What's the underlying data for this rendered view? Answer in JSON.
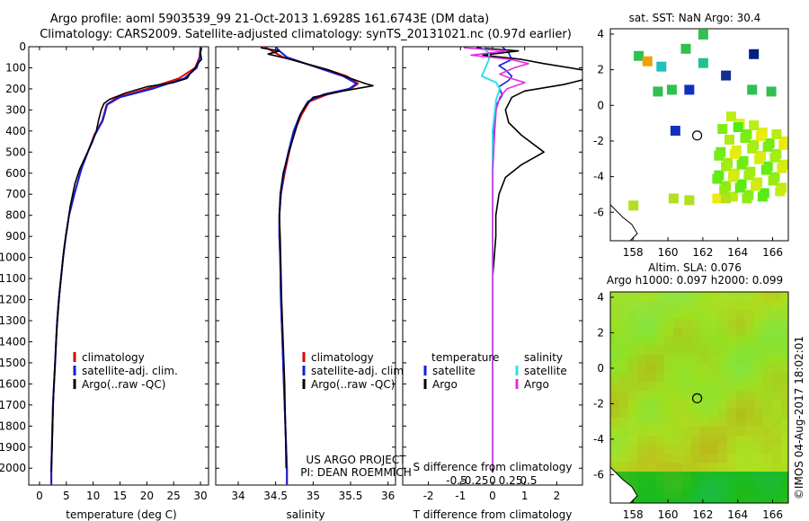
{
  "title": {
    "line1": "Argo profile: aoml 5903539_99 21-Oct-2013 1.6928S 161.6743E (DM data)",
    "line2": "Climatology: CARS2009. Satellite-adjusted climatology: synTS_20131021.nc (0.97d earlier)"
  },
  "side_label": "©IMOS 04-Aug-2017 18:02:01",
  "colors": {
    "climatology": "#e00000",
    "satellite": "#1020e0",
    "argo": "#000000",
    "sal_satellite": "#30e0e8",
    "sal_argo": "#e030e0"
  },
  "chart_data": [
    {
      "id": "temperature",
      "type": "line",
      "xlabel": "temperature (deg C)",
      "ylabel": "",
      "xlim": [
        -2,
        31.5
      ],
      "ylim": [
        2080,
        0
      ],
      "xticks": [
        "0",
        "5",
        "10",
        "15",
        "20",
        "25",
        "30"
      ],
      "yticks": [
        "0",
        "100",
        "200",
        "300",
        "400",
        "500",
        "600",
        "700",
        "800",
        "900",
        "1000",
        "1100",
        "1200",
        "1300",
        "1400",
        "1500",
        "1600",
        "1700",
        "1800",
        "1900",
        "2000"
      ],
      "legend": [
        "climatology",
        "satellite-adj. clim.",
        "Argo(..raw -QC)"
      ],
      "legend_position": "bottom-center",
      "series": [
        {
          "name": "climatology",
          "points": [
            [
              30.0,
              0
            ],
            [
              29.8,
              50
            ],
            [
              29.0,
              100
            ],
            [
              26.0,
              150
            ],
            [
              20.0,
              200
            ],
            [
              14.5,
              240
            ],
            [
              12.5,
              275
            ],
            [
              11.7,
              350
            ],
            [
              10.2,
              420
            ],
            [
              9.0,
              500
            ],
            [
              7.8,
              580
            ],
            [
              6.5,
              700
            ],
            [
              5.5,
              800
            ],
            [
              4.9,
              900
            ],
            [
              4.4,
              1000
            ],
            [
              4.0,
              1100
            ],
            [
              3.6,
              1200
            ],
            [
              3.3,
              1300
            ],
            [
              3.1,
              1400
            ],
            [
              2.9,
              1500
            ],
            [
              2.7,
              1600
            ],
            [
              2.5,
              1700
            ],
            [
              2.4,
              1800
            ],
            [
              2.3,
              1900
            ],
            [
              2.2,
              2000
            ],
            [
              2.2,
              2080
            ]
          ]
        },
        {
          "name": "satellite-adj. clim.",
          "points": [
            [
              30.1,
              0
            ],
            [
              29.9,
              50
            ],
            [
              29.3,
              100
            ],
            [
              27.0,
              150
            ],
            [
              21.0,
              200
            ],
            [
              15.0,
              240
            ],
            [
              12.6,
              275
            ],
            [
              11.8,
              350
            ],
            [
              10.3,
              420
            ],
            [
              9.0,
              500
            ],
            [
              7.8,
              580
            ],
            [
              6.5,
              700
            ],
            [
              5.5,
              800
            ],
            [
              4.9,
              900
            ],
            [
              4.4,
              1000
            ],
            [
              4.0,
              1100
            ],
            [
              3.6,
              1200
            ],
            [
              3.3,
              1300
            ],
            [
              3.1,
              1400
            ],
            [
              2.9,
              1500
            ],
            [
              2.7,
              1600
            ],
            [
              2.5,
              1700
            ],
            [
              2.4,
              1800
            ],
            [
              2.3,
              1900
            ],
            [
              2.2,
              2000
            ],
            [
              2.2,
              2080
            ]
          ]
        },
        {
          "name": "Argo(..raw -QC)",
          "points": [
            [
              30.2,
              5
            ],
            [
              30.0,
              30
            ],
            [
              30.2,
              60
            ],
            [
              29.5,
              80
            ],
            [
              29.0,
              100
            ],
            [
              28.0,
              130
            ],
            [
              27.5,
              150
            ],
            [
              25.0,
              170
            ],
            [
              20.0,
              190
            ],
            [
              16.0,
              220
            ],
            [
              13.0,
              250
            ],
            [
              12.0,
              270
            ],
            [
              11.5,
              300
            ],
            [
              11.0,
              350
            ],
            [
              10.6,
              400
            ],
            [
              9.9,
              450
            ],
            [
              8.6,
              520
            ],
            [
              7.5,
              580
            ],
            [
              6.6,
              650
            ],
            [
              5.7,
              760
            ],
            [
              5.2,
              850
            ],
            [
              4.6,
              950
            ],
            [
              4.2,
              1050
            ],
            [
              3.8,
              1150
            ],
            [
              3.5,
              1250
            ],
            [
              3.2,
              1350
            ],
            [
              3.0,
              1450
            ],
            [
              2.8,
              1550
            ],
            [
              2.6,
              1650
            ],
            [
              2.5,
              1750
            ],
            [
              2.4,
              1850
            ],
            [
              2.3,
              1950
            ],
            [
              2.2,
              2020
            ]
          ]
        }
      ]
    },
    {
      "id": "salinity",
      "type": "line",
      "xlabel": "salinity",
      "xlim": [
        33.7,
        36.1
      ],
      "ylim": [
        2080,
        0
      ],
      "xticks": [
        "34",
        "34.5",
        "35",
        "35.5",
        "36"
      ],
      "legend": [
        "climatology",
        "satellite-adj. clim.",
        "Argo(..raw -QC)"
      ],
      "legend_position": "bottom-center",
      "annotation": [
        "US ARGO PROJECT",
        "PI: DEAN ROEMMICH"
      ],
      "series": [
        {
          "name": "climatology",
          "points": [
            [
              34.35,
              0
            ],
            [
              34.45,
              20
            ],
            [
              34.6,
              50
            ],
            [
              34.9,
              80
            ],
            [
              35.2,
              110
            ],
            [
              35.45,
              140
            ],
            [
              35.6,
              175
            ],
            [
              35.5,
              200
            ],
            [
              35.2,
              225
            ],
            [
              34.95,
              260
            ],
            [
              34.85,
              320
            ],
            [
              34.75,
              400
            ],
            [
              34.68,
              500
            ],
            [
              34.62,
              600
            ],
            [
              34.57,
              700
            ],
            [
              34.55,
              800
            ],
            [
              34.55,
              900
            ],
            [
              34.56,
              1000
            ],
            [
              34.57,
              1200
            ],
            [
              34.59,
              1400
            ],
            [
              34.61,
              1600
            ],
            [
              34.63,
              1800
            ],
            [
              34.65,
              2000
            ],
            [
              34.65,
              2080
            ]
          ]
        },
        {
          "name": "satellite-adj. clim.",
          "points": [
            [
              34.5,
              0
            ],
            [
              34.55,
              20
            ],
            [
              34.65,
              50
            ],
            [
              34.9,
              80
            ],
            [
              35.15,
              110
            ],
            [
              35.4,
              140
            ],
            [
              35.58,
              175
            ],
            [
              35.48,
              200
            ],
            [
              35.15,
              225
            ],
            [
              34.93,
              260
            ],
            [
              34.83,
              320
            ],
            [
              34.74,
              400
            ],
            [
              34.67,
              500
            ],
            [
              34.61,
              600
            ],
            [
              34.57,
              700
            ],
            [
              34.55,
              800
            ],
            [
              34.55,
              900
            ],
            [
              34.56,
              1000
            ],
            [
              34.57,
              1200
            ],
            [
              34.59,
              1400
            ],
            [
              34.61,
              1600
            ],
            [
              34.63,
              1800
            ],
            [
              34.65,
              2000
            ],
            [
              34.65,
              2080
            ]
          ]
        },
        {
          "name": "Argo(..raw -QC)",
          "points": [
            [
              34.3,
              5
            ],
            [
              34.55,
              20
            ],
            [
              34.4,
              35
            ],
            [
              34.7,
              60
            ],
            [
              34.9,
              80
            ],
            [
              35.2,
              110
            ],
            [
              35.5,
              150
            ],
            [
              35.7,
              175
            ],
            [
              35.8,
              185
            ],
            [
              35.4,
              210
            ],
            [
              35.0,
              240
            ],
            [
              34.9,
              280
            ],
            [
              34.82,
              330
            ],
            [
              34.78,
              380
            ],
            [
              34.72,
              450
            ],
            [
              34.66,
              520
            ],
            [
              34.6,
              600
            ],
            [
              34.56,
              700
            ],
            [
              34.55,
              800
            ],
            [
              34.56,
              900
            ],
            [
              34.57,
              1050
            ],
            [
              34.58,
              1200
            ],
            [
              34.6,
              1400
            ],
            [
              34.62,
              1600
            ],
            [
              34.63,
              1800
            ],
            [
              34.64,
              2000
            ]
          ]
        }
      ]
    },
    {
      "id": "difference",
      "type": "line",
      "xlabel": "T difference from climatology",
      "xlabel_top": "S difference from climatology",
      "xlim": [
        -2.8,
        2.8
      ],
      "ylim": [
        2080,
        0
      ],
      "xticks": [
        "-2",
        "-1",
        "0",
        "1",
        "2"
      ],
      "xticks_s": [
        "-0.5",
        "-0.25",
        "0",
        "0.25",
        "0.5"
      ],
      "legend": [
        "temperature",
        "satellite",
        "Argo",
        "salinity",
        "satellite",
        "Argo"
      ],
      "legend_position": "bottom",
      "series": [
        {
          "name": "T satellite",
          "points": [
            [
              0.3,
              0
            ],
            [
              0.5,
              30
            ],
            [
              0.6,
              60
            ],
            [
              0.2,
              90
            ],
            [
              0.4,
              110
            ],
            [
              0.6,
              140
            ],
            [
              0.5,
              160
            ],
            [
              0.2,
              190
            ],
            [
              0.3,
              230
            ],
            [
              0.1,
              280
            ],
            [
              0.05,
              400
            ],
            [
              0.0,
              600
            ],
            [
              0.0,
              1000
            ],
            [
              0.0,
              1400
            ],
            [
              0.0,
              2000
            ]
          ]
        },
        {
          "name": "T Argo",
          "points": [
            [
              -0.5,
              5
            ],
            [
              0.8,
              20
            ],
            [
              -0.3,
              40
            ],
            [
              0.9,
              60
            ],
            [
              1.6,
              80
            ],
            [
              2.8,
              110
            ],
            [
              3.0,
              150
            ],
            [
              2.2,
              180
            ],
            [
              1.0,
              210
            ],
            [
              0.6,
              240
            ],
            [
              0.4,
              300
            ],
            [
              0.5,
              360
            ],
            [
              0.9,
              420
            ],
            [
              1.6,
              500
            ],
            [
              0.9,
              560
            ],
            [
              0.4,
              620
            ],
            [
              0.2,
              700
            ],
            [
              0.1,
              800
            ],
            [
              0.1,
              900
            ],
            [
              0.05,
              1000
            ],
            [
              0.0,
              1100
            ],
            [
              0.0,
              1300
            ],
            [
              0.0,
              1500
            ],
            [
              0.0,
              1700
            ],
            [
              0.0,
              1900
            ],
            [
              0.0,
              2020
            ]
          ]
        },
        {
          "name": "S satellite",
          "points": [
            [
              -0.15,
              0
            ],
            [
              -0.05,
              30
            ],
            [
              -0.05,
              60
            ],
            [
              -0.1,
              100
            ],
            [
              -0.15,
              140
            ],
            [
              0.05,
              170
            ],
            [
              0.1,
              200
            ],
            [
              0.05,
              250
            ],
            [
              0.0,
              400
            ],
            [
              0.0,
              700
            ],
            [
              0.0,
              1000
            ],
            [
              0.0,
              1400
            ],
            [
              0.0,
              1800
            ],
            [
              0.0,
              2000
            ]
          ]
        },
        {
          "name": "S Argo",
          "points": [
            [
              -0.4,
              5
            ],
            [
              0.2,
              20
            ],
            [
              -0.3,
              40
            ],
            [
              0.25,
              60
            ],
            [
              0.5,
              80
            ],
            [
              0.3,
              100
            ],
            [
              0.1,
              130
            ],
            [
              0.25,
              150
            ],
            [
              0.45,
              170
            ],
            [
              0.2,
              200
            ],
            [
              0.1,
              240
            ],
            [
              0.05,
              300
            ],
            [
              0.03,
              400
            ],
            [
              0.0,
              600
            ],
            [
              0.0,
              1000
            ],
            [
              0.0,
              1400
            ],
            [
              0.0,
              2000
            ]
          ]
        }
      ]
    },
    {
      "id": "sst_map",
      "type": "heatmap",
      "title": "sat. SST: NaN Argo: 30.4",
      "xlim": [
        156.7,
        166.9
      ],
      "ylim": [
        -7.6,
        4.3
      ],
      "xticks": [
        "158",
        "160",
        "162",
        "164",
        "166"
      ],
      "yticks": [
        "4",
        "2",
        "0",
        "-2",
        "-4",
        "-6"
      ],
      "argo_position": [
        161.6743,
        -1.6928
      ]
    },
    {
      "id": "sla_map",
      "type": "heatmap",
      "title": "Altim. SLA: 0.076",
      "subtitle": "Argo h1000: 0.097 h2000: 0.099",
      "xlim": [
        156.7,
        166.9
      ],
      "ylim": [
        -7.6,
        4.3
      ],
      "xticks": [
        "158",
        "160",
        "162",
        "164",
        "166"
      ],
      "yticks": [
        "4",
        "2",
        "0",
        "-2",
        "-4",
        "-6"
      ],
      "argo_position": [
        161.6743,
        -1.6928
      ]
    }
  ]
}
